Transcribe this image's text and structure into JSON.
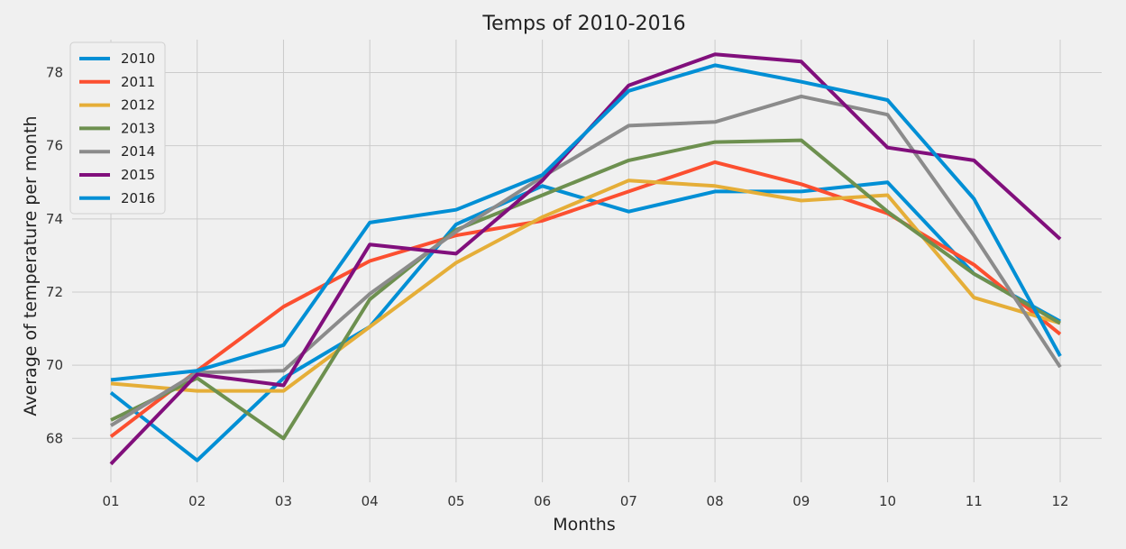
{
  "chart_data": {
    "type": "line",
    "title": "Temps of 2010-2016",
    "xlabel": "Months",
    "ylabel": "Average of temperature per month",
    "categories": [
      "01",
      "02",
      "03",
      "04",
      "05",
      "06",
      "07",
      "08",
      "09",
      "10",
      "11",
      "12"
    ],
    "ylim": [
      66.8,
      78.9
    ],
    "yticks": [
      68,
      70,
      72,
      74,
      76,
      78
    ],
    "grid": true,
    "legend_position": "top-left",
    "series": [
      {
        "name": "2010",
        "color": "#008fd5",
        "values": [
          69.25,
          67.4,
          69.65,
          71.05,
          73.85,
          74.9,
          74.2,
          74.75,
          74.75,
          75.0,
          72.5,
          71.2
        ]
      },
      {
        "name": "2011",
        "color": "#fc4f30",
        "values": [
          68.05,
          69.85,
          71.6,
          72.85,
          73.55,
          73.95,
          74.75,
          75.55,
          74.95,
          74.15,
          72.75,
          70.85
        ]
      },
      {
        "name": "2012",
        "color": "#e5ae38",
        "values": [
          69.5,
          69.3,
          69.3,
          71.05,
          72.8,
          74.05,
          75.05,
          74.9,
          74.5,
          74.65,
          71.85,
          71.15
        ]
      },
      {
        "name": "2013",
        "color": "#6d904f",
        "values": [
          68.5,
          69.65,
          68.0,
          71.8,
          73.7,
          74.65,
          75.6,
          76.1,
          76.15,
          74.2,
          72.5,
          71.15
        ]
      },
      {
        "name": "2014",
        "color": "#8b8b8b",
        "values": [
          68.35,
          69.8,
          69.85,
          71.95,
          73.65,
          75.15,
          76.55,
          76.65,
          77.35,
          76.85,
          73.55,
          69.95
        ]
      },
      {
        "name": "2015",
        "color": "#810f7c",
        "values": [
          67.3,
          69.75,
          69.45,
          73.3,
          73.05,
          75.05,
          77.65,
          78.5,
          78.3,
          75.95,
          75.6,
          73.45
        ]
      },
      {
        "name": "2016",
        "color": "#008fd5",
        "values": [
          69.6,
          69.85,
          70.55,
          73.9,
          74.25,
          75.2,
          77.5,
          78.2,
          77.75,
          77.25,
          74.55,
          70.25
        ]
      }
    ]
  }
}
